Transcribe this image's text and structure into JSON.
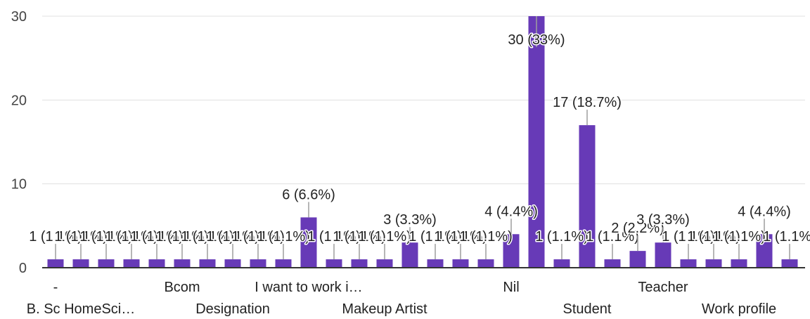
{
  "chart_data": {
    "type": "bar",
    "title": "",
    "xlabel": "",
    "ylabel": "",
    "ylim": [
      0,
      30
    ],
    "yticks": [
      "0",
      "10",
      "20",
      "30"
    ],
    "grid": true,
    "colors": {
      "bar": "#673ab7",
      "grid": "#e0e0e0",
      "axis": "#333333",
      "leader": "#9e9e9e"
    },
    "visible_category_labels": [
      "-",
      "B. Sc HomeSci…",
      "Bcom",
      "Designation",
      "I want to work i…",
      "Makeup Artist",
      "Nil",
      "Student",
      "Teacher",
      "Work profile"
    ],
    "label_slots": [
      0,
      1,
      5,
      7,
      10,
      13,
      18,
      21,
      24,
      27
    ],
    "values": [
      1,
      1,
      1,
      1,
      1,
      1,
      1,
      1,
      1,
      1,
      6,
      1,
      1,
      1,
      3,
      1,
      1,
      1,
      4,
      30,
      1,
      17,
      1,
      2,
      3,
      1,
      1,
      1,
      4,
      1
    ],
    "data_labels": [
      "1 (1.1%)",
      "1 (1.1%)",
      "1 (1.1%)",
      "1 (1.1%)",
      "1 (1.1%)",
      "1 (1.1%)",
      "1 (1.1%)",
      "1 (1.1%)",
      "1 (1.1%)",
      "1 (1.1%)",
      "6 (6.6%)",
      "1 (1.1%)",
      "1 (1.1%)",
      "1 (1.1%)",
      "3 (3.3%)",
      "1 (1.1%)",
      "1 (1.1%)",
      "1 (1.1%)",
      "4 (4.4%)",
      "30 (33%)",
      "1 (1.1%)",
      "17 (18.7%)",
      "1 (1.1%)",
      "2 (2.2%)",
      "3 (3.3%)",
      "1 (1.1%)",
      "1 (1.1%)",
      "1 (1.1%)",
      "4 (4.4%)",
      "1 (1.1%)"
    ]
  }
}
